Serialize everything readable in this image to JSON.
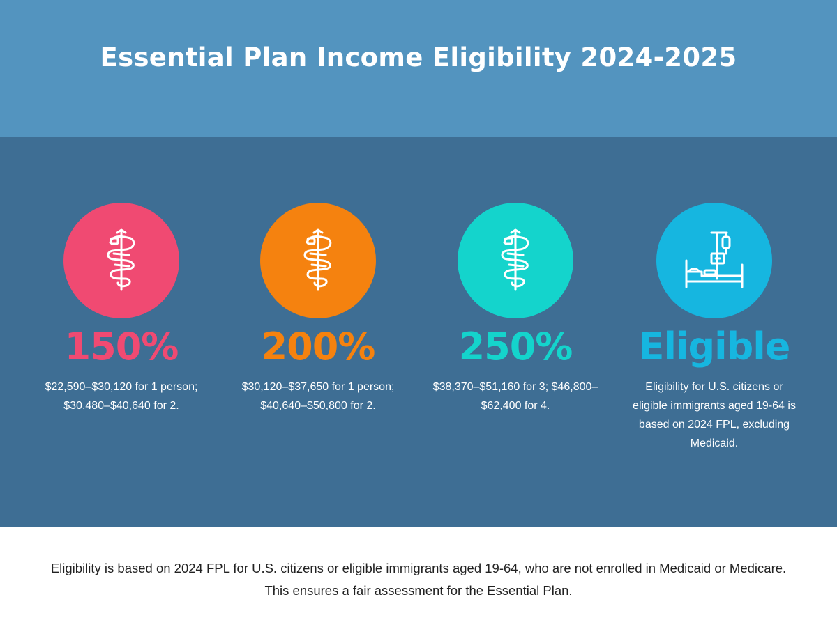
{
  "title": "Essential Plan Income Eligibility 2024-2025",
  "columns": [
    {
      "headline": "150%",
      "text": "$22,590–$30,120 for 1 person; $30,480–$40,640 for 2.",
      "icon": "caduceus-icon",
      "color": "#f04a72"
    },
    {
      "headline": "200%",
      "text": "$30,120–$37,650 for 1 person; $40,640–$50,800 for 2.",
      "icon": "caduceus-icon",
      "color": "#f5820f"
    },
    {
      "headline": "250%",
      "text": "$38,370–$51,160 for 3; $46,800–$62,400 for 4.",
      "icon": "caduceus-icon",
      "color": "#14d4cc"
    },
    {
      "headline": "Eligible",
      "text": "Eligibility for U.S. citizens or eligible immigrants aged 19-64 is based on 2024 FPL, excluding Medicaid.",
      "icon": "hospital-bed-iv-icon",
      "color": "#16b6e0"
    }
  ],
  "footer": "Eligibility is based on 2024 FPL for U.S. citizens or eligible immigrants aged 19-64, who are not enrolled in Medicaid or Medicare. This ensures a fair assessment for the Essential Plan.",
  "colors": {
    "header_bg": "#5394bf",
    "panel_bg": "#3e6e94",
    "footer_bg": "#ffffff"
  }
}
